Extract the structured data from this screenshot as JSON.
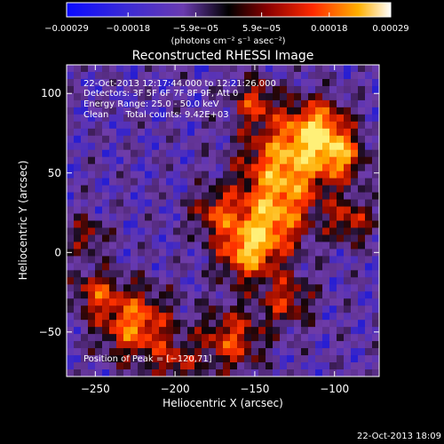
{
  "chart_data": {
    "type": "heatmap",
    "title": "Reconstructed RHESSI Image",
    "xlabel": "Heliocentric X (arcsec)",
    "ylabel": "Heliocentric Y (arcsec)",
    "xlim": [
      -268,
      -72
    ],
    "ylim": [
      -78,
      118
    ],
    "x_ticks": [
      -250,
      -200,
      -150,
      -100
    ],
    "x_tick_labels": [
      "−250",
      "−200",
      "−150",
      "−100"
    ],
    "y_ticks": [
      -50,
      0,
      50,
      100
    ],
    "y_tick_labels": [
      "−50",
      "0",
      "50",
      "100"
    ],
    "colorbar": {
      "range": [
        -0.00029,
        0.00029
      ],
      "ticks": [
        -0.00029,
        -0.00018,
        -5.9e-05,
        5.9e-05,
        0.00018,
        0.00029
      ],
      "tick_labels": [
        "−0.00029",
        "−0.00018",
        "−5.9e−05",
        "5.9e−05",
        "0.00018",
        "0.00029"
      ],
      "unit": "(photons cm⁻² s⁻¹ asec⁻²)"
    },
    "annotations": [
      "22-Oct-2013 12:17:44.000 to 12:21:26.000",
      "Detectors: 3F 5F 6F 7F 8F 9F, Att 0",
      "Energy Range: 25.0 - 50.0 keV",
      "Clean      Total counts: 9.42E+03"
    ],
    "peak_label": "Position of Peak = [−120,71]",
    "peak": [
      -120,
      71
    ]
  },
  "footer_timestamp": "22-Oct-2013 18:09",
  "colors": {
    "background": "#000000",
    "text": "#ffffff"
  }
}
